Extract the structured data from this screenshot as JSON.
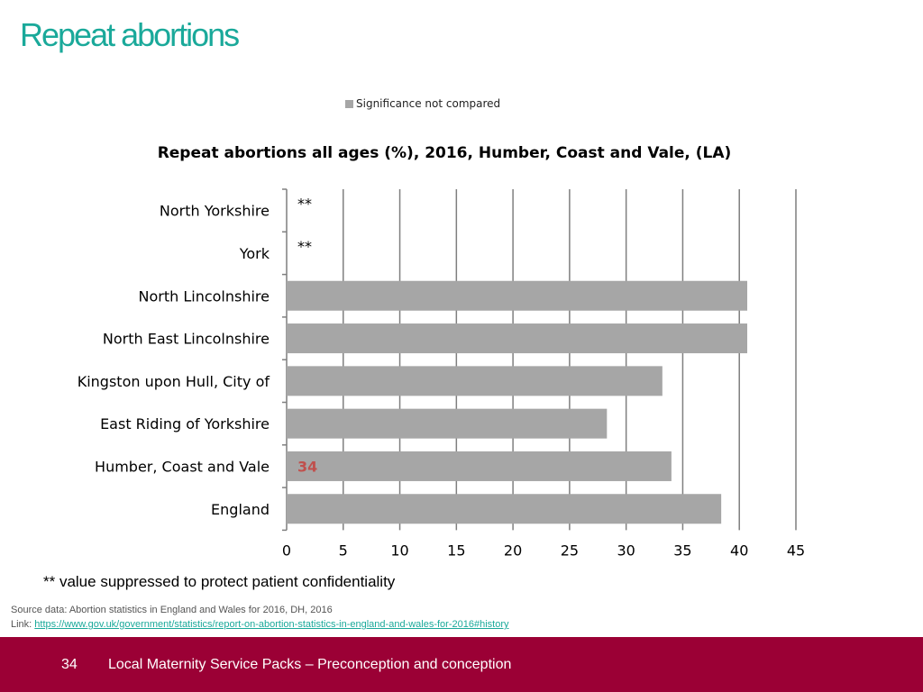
{
  "page": {
    "title": "Repeat abortions",
    "footnote": "** value suppressed to protect patient confidentiality",
    "source_line": "Source data: Abortion statistics in England and Wales for 2016, DH, 2016",
    "link_label": "Link: ",
    "link_url": "https://www.gov.uk/government/statistics/report-on-abortion-statistics-in-england-and-wales-for-2016#history",
    "page_number": "34",
    "footer_text": "Local Maternity Service Packs – Preconception and conception"
  },
  "colors": {
    "title": "#1aa99a",
    "bar": "#a6a6a6",
    "highlight_label": "#c0504d",
    "footer": "#9b0035"
  },
  "chart_data": {
    "type": "bar",
    "orientation": "horizontal",
    "title": "Repeat abortions all ages (%), 2016, Humber, Coast and Vale, (LA)",
    "legend": [
      "Significance not compared"
    ],
    "legend_position": "top",
    "categories": [
      "North Yorkshire",
      "York",
      "North Lincolnshire",
      "North East Lincolnshire",
      "Kingston upon Hull, City of",
      "East Riding of Yorkshire",
      "Humber, Coast and Vale",
      "England"
    ],
    "values": [
      null,
      null,
      40.7,
      40.7,
      33.2,
      28.3,
      34.0,
      38.4
    ],
    "suppressed_marker": "**",
    "data_labels": [
      "**",
      "**",
      "",
      "",
      "",
      "",
      "34",
      ""
    ],
    "xlim": [
      0,
      45
    ],
    "xticks": [
      "0",
      "5",
      "10",
      "15",
      "20",
      "25",
      "30",
      "35",
      "40",
      "45"
    ],
    "grid": true
  }
}
